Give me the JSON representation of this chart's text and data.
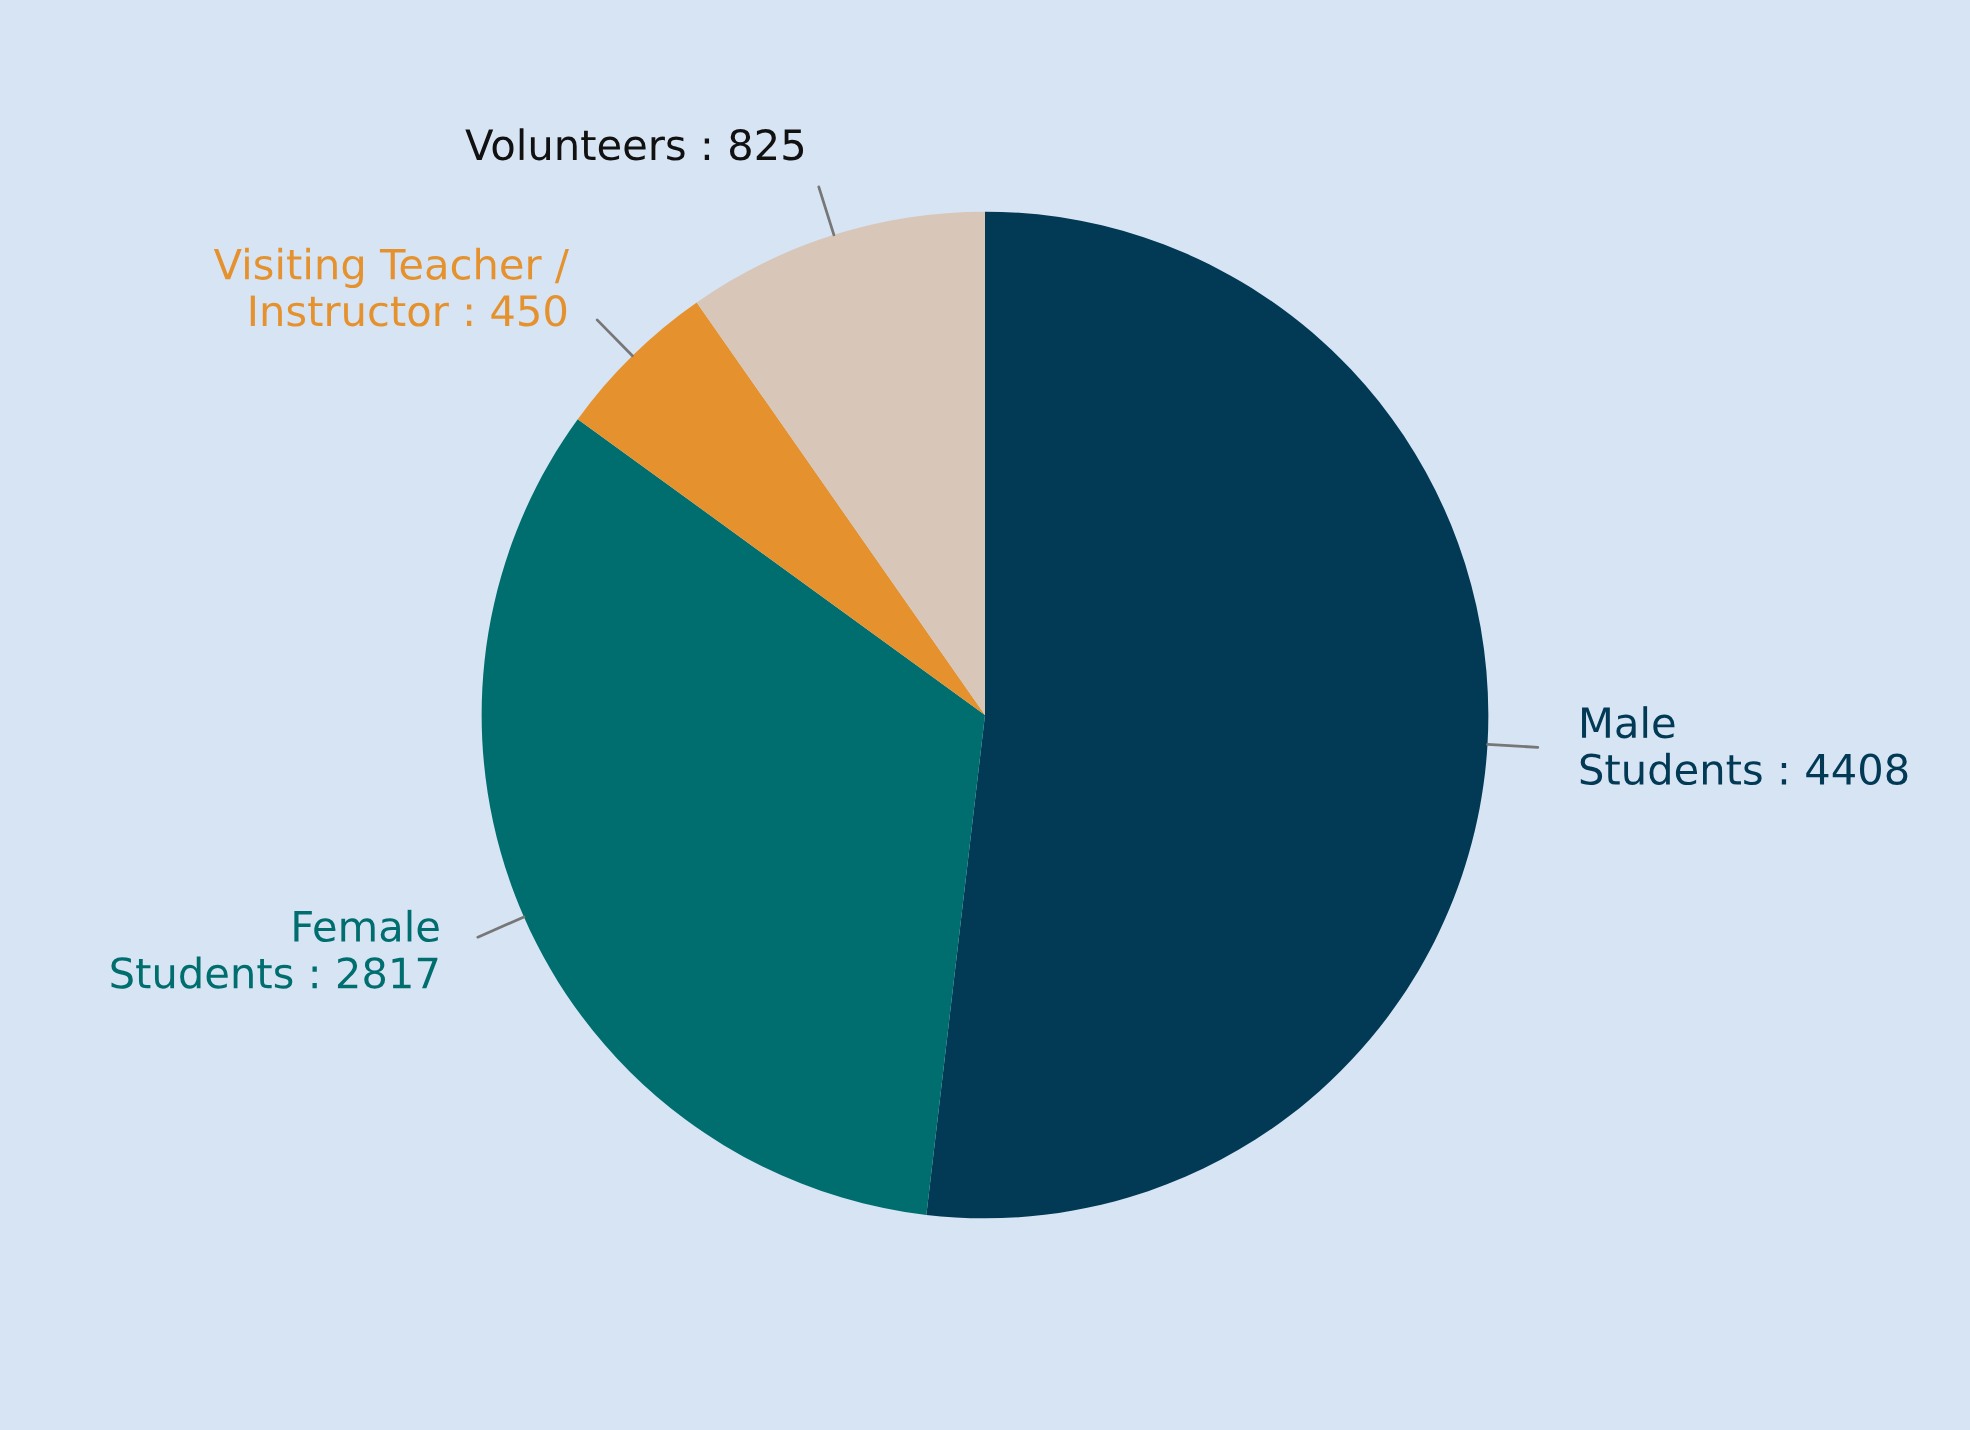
{
  "chart_data": {
    "type": "pie",
    "categories": [
      "Male\nStudents : 4408",
      "Female\nStudents : 2817",
      "Visiting Teacher /\nInstructor : 450",
      "Volunteers : 825"
    ],
    "values": [
      4408,
      2817,
      450,
      825
    ],
    "colors": [
      "#023a55",
      "#006e6e",
      "#e5922e",
      "#d8c6b8"
    ]
  }
}
